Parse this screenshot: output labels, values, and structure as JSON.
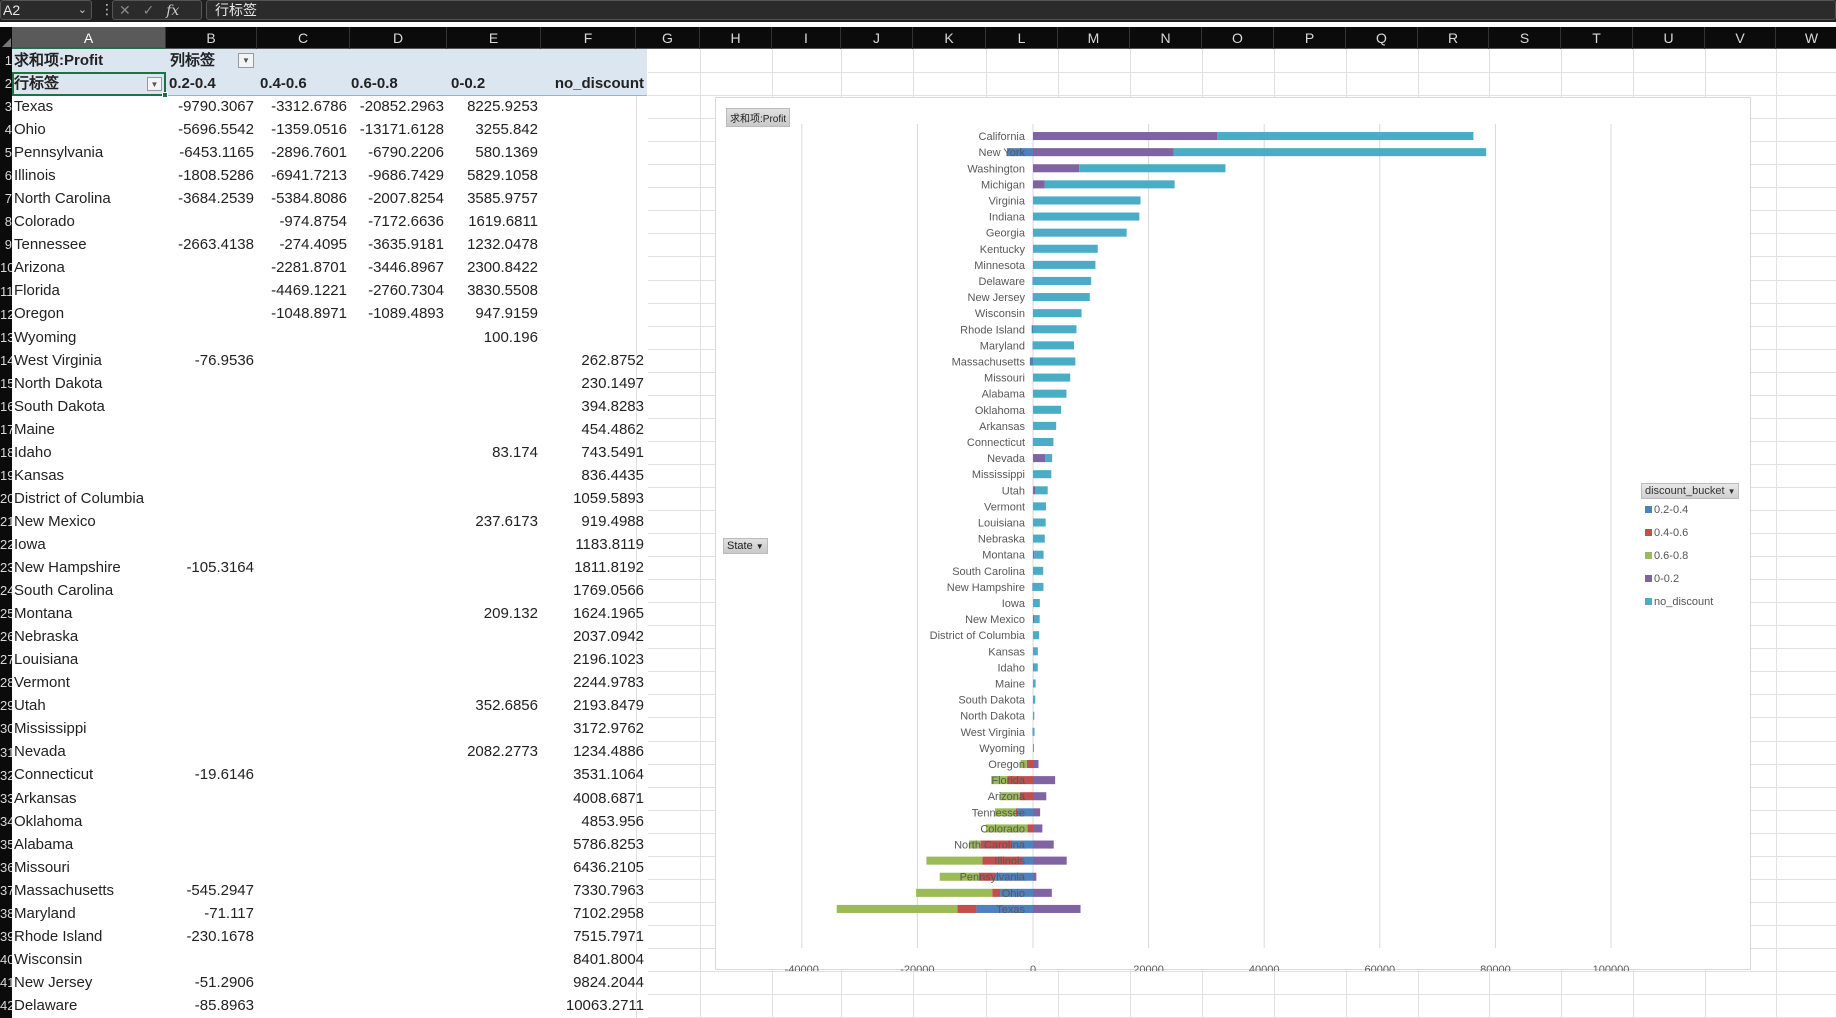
{
  "formula_bar": {
    "name_box": "A2",
    "formula": "行标签",
    "fx_label": "fx"
  },
  "columns": [
    "A",
    "B",
    "C",
    "D",
    "E",
    "F",
    "G",
    "H",
    "I",
    "J",
    "K",
    "L",
    "M",
    "N",
    "O",
    "P",
    "Q",
    "R",
    "S",
    "T",
    "U",
    "V",
    "W"
  ],
  "row_numbers": [
    "1",
    "2",
    "3",
    "4",
    "5",
    "6",
    "7",
    "8",
    "9",
    "10",
    "11",
    "12",
    "13",
    "14",
    "15",
    "16",
    "17",
    "18",
    "19",
    "20",
    "21",
    "22",
    "23",
    "24",
    "25",
    "26",
    "27",
    "28",
    "29",
    "30",
    "31",
    "32",
    "33",
    "34",
    "35",
    "36",
    "37",
    "38",
    "39",
    "40",
    "41",
    "42"
  ],
  "pivot": {
    "value_label": "求和项:Profit",
    "col_label": "列标签",
    "row_label": "行标签",
    "col_headers": [
      "0.2-0.4",
      "0.4-0.6",
      "0.6-0.8",
      "0-0.2",
      "no_discount"
    ],
    "rows": [
      {
        "state": "Texas",
        "v": [
          "-9790.3067",
          "-3312.6786",
          "-20852.2963",
          "8225.9253",
          ""
        ]
      },
      {
        "state": "Ohio",
        "v": [
          "-5696.5542",
          "-1359.0516",
          "-13171.6128",
          "3255.842",
          ""
        ]
      },
      {
        "state": "Pennsylvania",
        "v": [
          "-6453.1165",
          "-2896.7601",
          "-6790.2206",
          "580.1369",
          ""
        ]
      },
      {
        "state": "Illinois",
        "v": [
          "-1808.5286",
          "-6941.7213",
          "-9686.7429",
          "5829.1058",
          ""
        ]
      },
      {
        "state": "North Carolina",
        "v": [
          "-3684.2539",
          "-5384.8086",
          "-2007.8254",
          "3585.9757",
          ""
        ]
      },
      {
        "state": "Colorado",
        "v": [
          "",
          "-974.8754",
          "-7172.6636",
          "1619.6811",
          ""
        ]
      },
      {
        "state": "Tennessee",
        "v": [
          "-2663.4138",
          "-274.4095",
          "-3635.9181",
          "1232.0478",
          ""
        ]
      },
      {
        "state": "Arizona",
        "v": [
          "",
          "-2281.8701",
          "-3446.8967",
          "2300.8422",
          ""
        ]
      },
      {
        "state": "Florida",
        "v": [
          "",
          "-4469.1221",
          "-2760.7304",
          "3830.5508",
          ""
        ]
      },
      {
        "state": "Oregon",
        "v": [
          "",
          "-1048.8971",
          "-1089.4893",
          "947.9159",
          ""
        ]
      },
      {
        "state": "Wyoming",
        "v": [
          "",
          "",
          "",
          "100.196",
          ""
        ]
      },
      {
        "state": "West Virginia",
        "v": [
          "-76.9536",
          "",
          "",
          "",
          "262.8752"
        ]
      },
      {
        "state": "North Dakota",
        "v": [
          "",
          "",
          "",
          "",
          "230.1497"
        ]
      },
      {
        "state": "South Dakota",
        "v": [
          "",
          "",
          "",
          "",
          "394.8283"
        ]
      },
      {
        "state": "Maine",
        "v": [
          "",
          "",
          "",
          "",
          "454.4862"
        ]
      },
      {
        "state": "Idaho",
        "v": [
          "",
          "",
          "",
          "83.174",
          "743.5491"
        ]
      },
      {
        "state": "Kansas",
        "v": [
          "",
          "",
          "",
          "",
          "836.4435"
        ]
      },
      {
        "state": "District of Columbia",
        "v": [
          "",
          "",
          "",
          "",
          "1059.5893"
        ]
      },
      {
        "state": "New Mexico",
        "v": [
          "",
          "",
          "",
          "237.6173",
          "919.4988"
        ]
      },
      {
        "state": "Iowa",
        "v": [
          "",
          "",
          "",
          "",
          "1183.8119"
        ]
      },
      {
        "state": "New Hampshire",
        "v": [
          "-105.3164",
          "",
          "",
          "",
          "1811.8192"
        ]
      },
      {
        "state": "South Carolina",
        "v": [
          "",
          "",
          "",
          "",
          "1769.0566"
        ]
      },
      {
        "state": "Montana",
        "v": [
          "",
          "",
          "",
          "209.132",
          "1624.1965"
        ]
      },
      {
        "state": "Nebraska",
        "v": [
          "",
          "",
          "",
          "",
          "2037.0942"
        ]
      },
      {
        "state": "Louisiana",
        "v": [
          "",
          "",
          "",
          "",
          "2196.1023"
        ]
      },
      {
        "state": "Vermont",
        "v": [
          "",
          "",
          "",
          "",
          "2244.9783"
        ]
      },
      {
        "state": "Utah",
        "v": [
          "",
          "",
          "",
          "352.6856",
          "2193.8479"
        ]
      },
      {
        "state": "Mississippi",
        "v": [
          "",
          "",
          "",
          "",
          "3172.9762"
        ]
      },
      {
        "state": "Nevada",
        "v": [
          "",
          "",
          "",
          "2082.2773",
          "1234.4886"
        ]
      },
      {
        "state": "Connecticut",
        "v": [
          "-19.6146",
          "",
          "",
          "",
          "3531.1064"
        ]
      },
      {
        "state": "Arkansas",
        "v": [
          "",
          "",
          "",
          "",
          "4008.6871"
        ]
      },
      {
        "state": "Oklahoma",
        "v": [
          "",
          "",
          "",
          "",
          "4853.956"
        ]
      },
      {
        "state": "Alabama",
        "v": [
          "",
          "",
          "",
          "",
          "5786.8253"
        ]
      },
      {
        "state": "Missouri",
        "v": [
          "",
          "",
          "",
          "",
          "6436.2105"
        ]
      },
      {
        "state": "Massachusetts",
        "v": [
          "-545.2947",
          "",
          "",
          "",
          "7330.7963"
        ]
      },
      {
        "state": "Maryland",
        "v": [
          "-71.117",
          "",
          "",
          "",
          "7102.2958"
        ]
      },
      {
        "state": "Rhode Island",
        "v": [
          "-230.1678",
          "",
          "",
          "",
          "7515.7971"
        ]
      },
      {
        "state": "Wisconsin",
        "v": [
          "",
          "",
          "",
          "",
          "8401.8004"
        ]
      },
      {
        "state": "New Jersey",
        "v": [
          "-51.2906",
          "",
          "",
          "",
          "9824.2044"
        ]
      },
      {
        "state": "Delaware",
        "v": [
          "-85.8963",
          "",
          "",
          "",
          "10063.2711"
        ]
      }
    ]
  },
  "chart_ui": {
    "value_tag": "求和项:Profit",
    "axis_field": "State",
    "legend_field": "discount_bucket"
  },
  "chart_data": {
    "type": "bar",
    "orientation": "horizontal",
    "stacked": true,
    "title": "",
    "xlabel": "",
    "ylabel": "",
    "xlim": [
      -40000,
      110000
    ],
    "x_ticks": [
      "-40000",
      "-20000",
      "0",
      "20000",
      "40000",
      "60000",
      "80000",
      "100000"
    ],
    "x_tick_values": [
      -40000,
      -20000,
      0,
      20000,
      40000,
      60000,
      80000,
      100000
    ],
    "grid": true,
    "legend_position": "right",
    "legend_title": "discount_bucket",
    "categories": [
      "California",
      "New York",
      "Washington",
      "Michigan",
      "Virginia",
      "Indiana",
      "Georgia",
      "Kentucky",
      "Minnesota",
      "Delaware",
      "New Jersey",
      "Wisconsin",
      "Rhode Island",
      "Maryland",
      "Massachusetts",
      "Missouri",
      "Alabama",
      "Oklahoma",
      "Arkansas",
      "Connecticut",
      "Nevada",
      "Mississippi",
      "Utah",
      "Vermont",
      "Louisiana",
      "Nebraska",
      "Montana",
      "South Carolina",
      "New Hampshire",
      "Iowa",
      "New Mexico",
      "District of Columbia",
      "Kansas",
      "Idaho",
      "Maine",
      "South Dakota",
      "North Dakota",
      "West Virginia",
      "Wyoming",
      "Oregon",
      "Florida",
      "Arizona",
      "Tennessee",
      "Colorado",
      "North Carolina",
      "Illinois",
      "Pennsylvania",
      "Ohio",
      "Texas"
    ],
    "series": [
      {
        "name": "0.2-0.4",
        "color": "#4f81bd",
        "values": [
          0,
          -4500,
          0,
          0,
          0,
          0,
          0,
          0,
          0,
          -85.9,
          -51.3,
          0,
          -230.2,
          -71.1,
          -545.3,
          0,
          0,
          0,
          0,
          -19.6,
          0,
          0,
          0,
          0,
          0,
          0,
          0,
          0,
          -105.3,
          0,
          0,
          0,
          0,
          0,
          0,
          0,
          0,
          -77.0,
          0,
          0,
          0,
          0,
          -2663.4,
          0,
          -3684.3,
          -1808.5,
          -6453.1,
          -5696.6,
          -9790.3
        ]
      },
      {
        "name": "0.4-0.6",
        "color": "#c0504d",
        "values": [
          0,
          0,
          0,
          0,
          0,
          0,
          0,
          0,
          0,
          0,
          0,
          0,
          0,
          0,
          0,
          0,
          0,
          0,
          0,
          0,
          0,
          0,
          0,
          0,
          0,
          0,
          0,
          0,
          0,
          0,
          0,
          0,
          0,
          0,
          0,
          0,
          0,
          0,
          0,
          -1048.9,
          -4469.1,
          -2281.9,
          -274.4,
          -974.9,
          -5384.8,
          -6941.7,
          -2896.8,
          -1359.1,
          -3312.7
        ]
      },
      {
        "name": "0.6-0.8",
        "color": "#9bbb59",
        "values": [
          0,
          0,
          0,
          0,
          0,
          0,
          0,
          0,
          0,
          0,
          0,
          0,
          0,
          0,
          0,
          0,
          0,
          0,
          0,
          0,
          0,
          0,
          0,
          0,
          0,
          0,
          0,
          0,
          0,
          0,
          0,
          0,
          0,
          0,
          0,
          0,
          0,
          0,
          0,
          -1089.5,
          -2760.7,
          -3446.9,
          -3635.9,
          -7172.7,
          -2007.8,
          -9686.7,
          -6790.2,
          -13171.6,
          -20852.3
        ]
      },
      {
        "name": "0-0.2",
        "color": "#8064a2",
        "values": [
          31900,
          24300,
          8000,
          2000,
          0,
          0,
          0,
          0,
          0,
          0,
          0,
          0,
          0,
          0,
          0,
          0,
          0,
          0,
          0,
          0,
          2082.3,
          0,
          352.7,
          0,
          0,
          0,
          209.1,
          0,
          0,
          0,
          237.6,
          0,
          0,
          83.2,
          0,
          0,
          0,
          0,
          100.2,
          947.9,
          3830.6,
          2300.8,
          1232.0,
          1619.7,
          3586.0,
          5829.1,
          580.1,
          3255.8,
          8225.9
        ]
      },
      {
        "name": "no_discount",
        "color": "#4bacc6",
        "values": [
          44300,
          54100,
          25300,
          22500,
          18600,
          18400,
          16200,
          11200,
          10800,
          10063.3,
          9824.2,
          8401.8,
          7515.8,
          7102.3,
          7330.8,
          6436.2,
          5786.8,
          4854.0,
          4008.7,
          3531.1,
          1234.5,
          3173.0,
          2193.8,
          2245.0,
          2196.1,
          2037.1,
          1624.2,
          1769.1,
          1811.8,
          1183.8,
          919.5,
          1059.6,
          836.4,
          743.5,
          454.5,
          394.8,
          230.1,
          262.9,
          0,
          0,
          0,
          0,
          0,
          0,
          0,
          0,
          0,
          0,
          0
        ]
      }
    ]
  }
}
